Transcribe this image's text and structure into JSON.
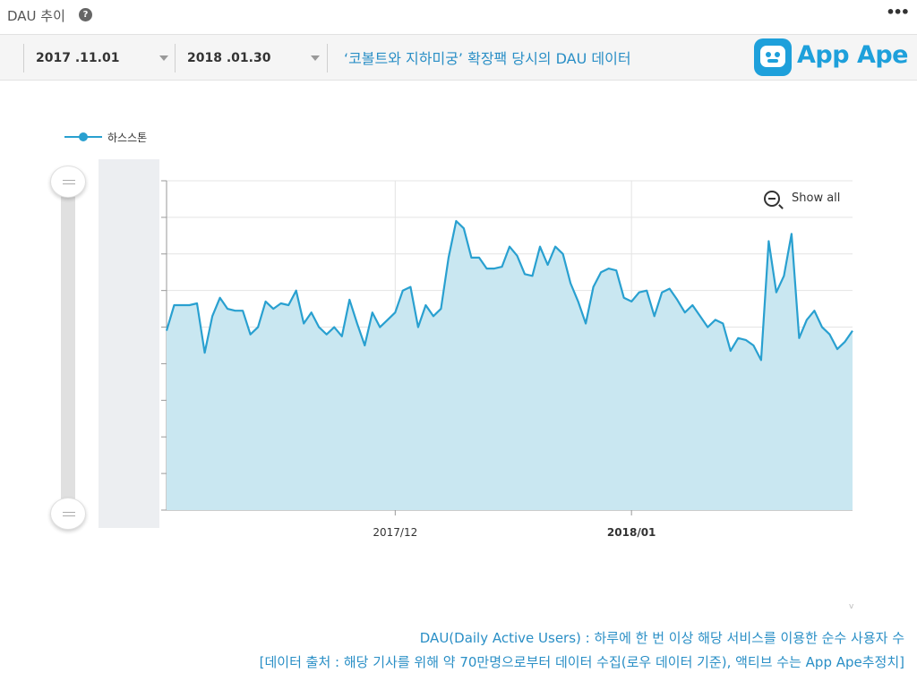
{
  "header": {
    "title": "DAU 추이"
  },
  "toolbar": {
    "start_date": "2017 .11.01",
    "end_date": "2018 .01.30",
    "subtitle": "‘코볼트와 지하미궁’ 확장팩 당시의 DAU 데이터"
  },
  "logo": {
    "text": "App Ape"
  },
  "chart_controls": {
    "show_all_label": "Show all"
  },
  "colors": {
    "line": "#29a0d0",
    "area": "#c9e7f1",
    "accent": "#2a8fc6",
    "range_shade": "#eceef1"
  },
  "chart_data": {
    "type": "area",
    "title": "",
    "xlabel": "",
    "ylabel": "",
    "x_tick_labels": [
      "2017/12",
      "2018/01"
    ],
    "y_tick_labels": [],
    "grid": true,
    "legend_position": "top-left",
    "ylim": [
      0,
      9
    ],
    "series": [
      {
        "name": "하스스톤",
        "x": [
          "2017-11-01",
          "2017-11-02",
          "2017-11-03",
          "2017-11-04",
          "2017-11-05",
          "2017-11-06",
          "2017-11-07",
          "2017-11-08",
          "2017-11-09",
          "2017-11-10",
          "2017-11-11",
          "2017-11-12",
          "2017-11-13",
          "2017-11-14",
          "2017-11-15",
          "2017-11-16",
          "2017-11-17",
          "2017-11-18",
          "2017-11-19",
          "2017-11-20",
          "2017-11-21",
          "2017-11-22",
          "2017-11-23",
          "2017-11-24",
          "2017-11-25",
          "2017-11-26",
          "2017-11-27",
          "2017-11-28",
          "2017-11-29",
          "2017-11-30",
          "2017-12-01",
          "2017-12-02",
          "2017-12-03",
          "2017-12-04",
          "2017-12-05",
          "2017-12-06",
          "2017-12-07",
          "2017-12-08",
          "2017-12-09",
          "2017-12-10",
          "2017-12-11",
          "2017-12-12",
          "2017-12-13",
          "2017-12-14",
          "2017-12-15",
          "2017-12-16",
          "2017-12-17",
          "2017-12-18",
          "2017-12-19",
          "2017-12-20",
          "2017-12-21",
          "2017-12-22",
          "2017-12-23",
          "2017-12-24",
          "2017-12-25",
          "2017-12-26",
          "2017-12-27",
          "2017-12-28",
          "2017-12-29",
          "2017-12-30",
          "2017-12-31",
          "2018-01-01",
          "2018-01-02",
          "2018-01-03",
          "2018-01-04",
          "2018-01-05",
          "2018-01-06",
          "2018-01-07",
          "2018-01-08",
          "2018-01-09",
          "2018-01-10",
          "2018-01-11",
          "2018-01-12",
          "2018-01-13",
          "2018-01-14",
          "2018-01-15",
          "2018-01-16",
          "2018-01-17",
          "2018-01-18",
          "2018-01-19",
          "2018-01-20",
          "2018-01-21",
          "2018-01-22",
          "2018-01-23",
          "2018-01-24",
          "2018-01-25",
          "2018-01-26",
          "2018-01-27",
          "2018-01-28",
          "2018-01-29",
          "2018-01-30"
        ],
        "values": [
          4.9,
          5.6,
          5.6,
          5.6,
          5.65,
          4.3,
          5.3,
          5.8,
          5.5,
          5.45,
          5.45,
          4.8,
          5.0,
          5.7,
          5.5,
          5.65,
          5.6,
          6.0,
          5.1,
          5.4,
          5.0,
          4.8,
          5.0,
          4.75,
          5.75,
          5.1,
          4.5,
          5.4,
          5.0,
          5.2,
          5.4,
          6.0,
          6.1,
          5.0,
          5.6,
          5.3,
          5.5,
          6.9,
          7.9,
          7.7,
          6.9,
          6.9,
          6.6,
          6.6,
          6.65,
          7.2,
          6.95,
          6.45,
          6.4,
          7.2,
          6.7,
          7.2,
          7.0,
          6.2,
          5.7,
          5.1,
          6.1,
          6.5,
          6.6,
          6.55,
          5.8,
          5.7,
          5.95,
          6.0,
          5.3,
          5.95,
          6.05,
          5.75,
          5.4,
          5.6,
          5.3,
          5.0,
          5.2,
          5.1,
          4.35,
          4.7,
          4.65,
          4.5,
          4.1,
          7.35,
          5.95,
          6.4,
          7.55,
          4.7,
          5.2,
          5.45,
          5.0,
          4.8,
          4.4,
          4.6,
          4.9
        ]
      }
    ]
  },
  "footer": {
    "line1": "DAU(Daily Active Users) : 하루에 한 번 이상 해당 서비스를 이용한 순수 사용자 수",
    "line2": "[데이터 출처 : 해당 기사를 위해 약 70만명으로부터 데이터 수집(로우 데이터 기준), 액티브 수는 App Ape추정치]",
    "corner_mark": "v"
  }
}
